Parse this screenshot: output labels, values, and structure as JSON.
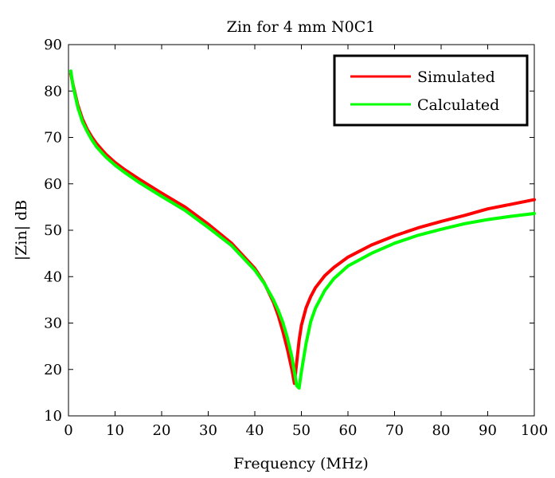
{
  "chart_data": {
    "type": "line",
    "title": "Zin for 4 mm N0C1",
    "xlabel": "Frequency (MHz)",
    "ylabel": "|Zin| dB",
    "xlim": [
      0,
      100
    ],
    "ylim": [
      10,
      90
    ],
    "xticks": [
      0,
      10,
      20,
      30,
      40,
      50,
      60,
      70,
      80,
      90,
      100
    ],
    "yticks": [
      10,
      20,
      30,
      40,
      50,
      60,
      70,
      80,
      90
    ],
    "grid": false,
    "legend_position": "top-right",
    "series": [
      {
        "name": "Simulated",
        "color": "#ff0000",
        "x": [
          0.5,
          1,
          2,
          3,
          4,
          5,
          6,
          8,
          10,
          12,
          15,
          20,
          25,
          30,
          35,
          40,
          42,
          44,
          45,
          46,
          47,
          48,
          48.5,
          49,
          49.5,
          50,
          51,
          52,
          53,
          55,
          57,
          60,
          65,
          70,
          75,
          80,
          85,
          90,
          95,
          100
        ],
        "values": [
          83.7,
          81.3,
          77.0,
          74.0,
          71.8,
          70.1,
          68.7,
          66.4,
          64.6,
          63.1,
          61.1,
          58.0,
          55.0,
          51.3,
          47.2,
          41.8,
          38.7,
          34.5,
          31.7,
          28.3,
          24.4,
          19.8,
          17.0,
          21.5,
          26.2,
          29.5,
          33.3,
          35.7,
          37.6,
          40.2,
          42.0,
          44.2,
          46.8,
          48.8,
          50.5,
          51.9,
          53.2,
          54.6,
          55.6,
          56.6
        ]
      },
      {
        "name": "Calculated",
        "color": "#00ff00",
        "x": [
          0.5,
          1,
          2,
          3,
          4,
          5,
          6,
          8,
          10,
          12,
          15,
          20,
          25,
          30,
          35,
          40,
          42,
          44,
          45,
          46,
          47,
          48,
          49,
          49.5,
          50,
          51,
          52,
          53,
          55,
          57,
          60,
          65,
          70,
          75,
          80,
          85,
          90,
          95,
          100
        ],
        "values": [
          84.3,
          81.0,
          76.5,
          73.4,
          71.3,
          69.5,
          68.0,
          65.8,
          64.0,
          62.5,
          60.4,
          57.3,
          54.3,
          50.6,
          46.7,
          41.4,
          38.6,
          35.0,
          32.8,
          30.2,
          26.8,
          22.5,
          16.5,
          16.0,
          19.5,
          25.6,
          30.3,
          33.2,
          37.0,
          39.6,
          42.3,
          45.0,
          47.2,
          48.9,
          50.2,
          51.4,
          52.3,
          53.0,
          53.6
        ]
      }
    ]
  }
}
